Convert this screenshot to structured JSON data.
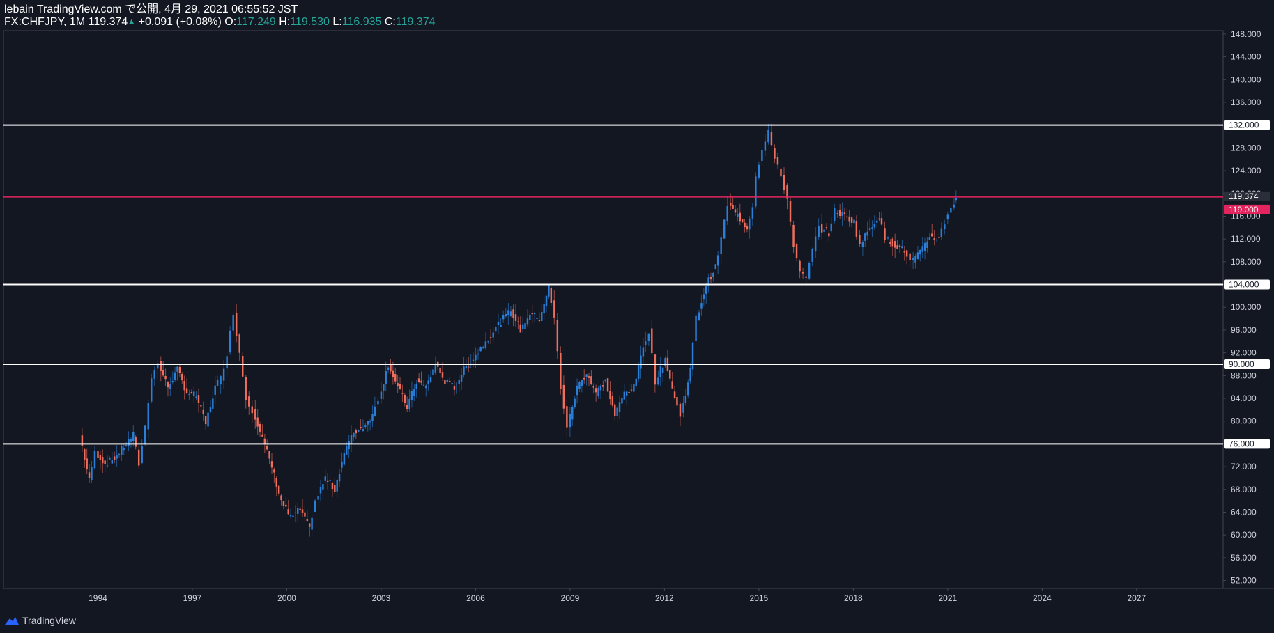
{
  "header": {
    "line1": "lebain TradingView.com で公開, 4月 29, 2021 06:55:52 JST",
    "symbol": "FX:CHFJPY, 1M",
    "last": "119.374",
    "arrow": "▲",
    "change": "+0.091 (+0.08%)",
    "o_label": "O:",
    "o_value": "117.249",
    "h_label": "H:",
    "h_value": "119.530",
    "l_label": "L:",
    "l_value": "116.935",
    "c_label": "C:",
    "c_value": "119.374"
  },
  "footer": {
    "brand": "TradingView"
  },
  "colors": {
    "background": "#131722",
    "up": "#2a7fd8",
    "down": "#f06e5c",
    "line": "#ffffff",
    "price_line": "#e2245f",
    "axis_text": "#d1d4dc"
  },
  "chart_data": {
    "type": "candlestick",
    "title": "FX:CHFJPY, 1M",
    "x_axis": {
      "ticks": [
        "1994",
        "1997",
        "2000",
        "2003",
        "2006",
        "2009",
        "2012",
        "2015",
        "2018",
        "2021",
        "2024",
        "2027"
      ],
      "range": [
        1991.0,
        2029.75
      ]
    },
    "y_axis": {
      "ticks": [
        "52.000",
        "56.000",
        "60.000",
        "64.000",
        "68.000",
        "72.000",
        "76.000",
        "80.000",
        "84.000",
        "88.000",
        "92.000",
        "96.000",
        "100.000",
        "104.000",
        "108.000",
        "112.000",
        "116.000",
        "120.000",
        "124.000",
        "128.000",
        "132.000",
        "136.000",
        "140.000",
        "144.000",
        "148.000"
      ],
      "range": [
        50.6,
        148.6
      ]
    },
    "horizontal_lines": [
      {
        "value": 132.0,
        "label": "132.000"
      },
      {
        "value": 104.0,
        "label": "104.000"
      },
      {
        "value": 90.0,
        "label": "90.000"
      },
      {
        "value": 76.0,
        "label": "76.000"
      }
    ],
    "price_lines": [
      {
        "value": 119.374,
        "label": "119.374",
        "kind": "last"
      },
      {
        "value": 119.0,
        "label": "119.000",
        "kind": "alert"
      }
    ],
    "series_points": [
      [
        1993.5,
        77.5
      ],
      [
        1993.8,
        69.5
      ],
      [
        1994.0,
        74.5
      ],
      [
        1994.3,
        72.5
      ],
      [
        1994.6,
        73.5
      ],
      [
        1994.9,
        75.5
      ],
      [
        1995.2,
        77.5
      ],
      [
        1995.4,
        72.5
      ],
      [
        1995.6,
        79.0
      ],
      [
        1995.8,
        88.0
      ],
      [
        1996.0,
        90.0
      ],
      [
        1996.3,
        86.0
      ],
      [
        1996.6,
        89.0
      ],
      [
        1996.9,
        85.0
      ],
      [
        1997.2,
        84.5
      ],
      [
        1997.5,
        79.5
      ],
      [
        1997.8,
        86.0
      ],
      [
        1998.0,
        87.5
      ],
      [
        1998.2,
        92.0
      ],
      [
        1998.4,
        99.0
      ],
      [
        1998.6,
        92.0
      ],
      [
        1998.8,
        84.0
      ],
      [
        1999.0,
        82.0
      ],
      [
        1999.3,
        77.0
      ],
      [
        1999.6,
        72.0
      ],
      [
        1999.9,
        66.0
      ],
      [
        2000.2,
        63.0
      ],
      [
        2000.5,
        64.5
      ],
      [
        2000.8,
        61.0
      ],
      [
        2001.0,
        66.0
      ],
      [
        2001.3,
        70.0
      ],
      [
        2001.6,
        68.0
      ],
      [
        2001.9,
        74.5
      ],
      [
        2002.2,
        78.0
      ],
      [
        2002.5,
        79.0
      ],
      [
        2002.8,
        81.0
      ],
      [
        2003.0,
        84.0
      ],
      [
        2003.3,
        90.0
      ],
      [
        2003.6,
        86.0
      ],
      [
        2003.9,
        82.5
      ],
      [
        2004.2,
        87.0
      ],
      [
        2004.5,
        86.0
      ],
      [
        2004.8,
        90.0
      ],
      [
        2005.1,
        87.0
      ],
      [
        2005.4,
        86.0
      ],
      [
        2005.7,
        89.0
      ],
      [
        2006.0,
        91.0
      ],
      [
        2006.4,
        94.0
      ],
      [
        2006.8,
        97.0
      ],
      [
        2007.2,
        99.5
      ],
      [
        2007.5,
        96.0
      ],
      [
        2007.8,
        99.0
      ],
      [
        2008.1,
        98.0
      ],
      [
        2008.4,
        103.5
      ],
      [
        2008.6,
        98.0
      ],
      [
        2008.8,
        86.0
      ],
      [
        2009.0,
        79.0
      ],
      [
        2009.3,
        86.0
      ],
      [
        2009.6,
        88.5
      ],
      [
        2009.9,
        85.0
      ],
      [
        2010.2,
        87.0
      ],
      [
        2010.5,
        81.0
      ],
      [
        2010.8,
        85.0
      ],
      [
        2011.1,
        86.0
      ],
      [
        2011.4,
        93.0
      ],
      [
        2011.6,
        96.0
      ],
      [
        2011.8,
        87.0
      ],
      [
        2012.1,
        91.0
      ],
      [
        2012.4,
        84.0
      ],
      [
        2012.6,
        81.0
      ],
      [
        2012.9,
        89.0
      ],
      [
        2013.1,
        98.0
      ],
      [
        2013.4,
        104.0
      ],
      [
        2013.7,
        107.0
      ],
      [
        2013.9,
        112.0
      ],
      [
        2014.1,
        118.0
      ],
      [
        2014.4,
        116.0
      ],
      [
        2014.7,
        114.0
      ],
      [
        2014.9,
        118.0
      ],
      [
        2015.0,
        123.0
      ],
      [
        2015.2,
        128.0
      ],
      [
        2015.4,
        131.0
      ],
      [
        2015.6,
        126.0
      ],
      [
        2015.8,
        123.0
      ],
      [
        2016.0,
        119.0
      ],
      [
        2016.2,
        111.0
      ],
      [
        2016.4,
        106.0
      ],
      [
        2016.6,
        105.0
      ],
      [
        2016.8,
        110.0
      ],
      [
        2017.0,
        114.0
      ],
      [
        2017.3,
        113.0
      ],
      [
        2017.5,
        117.0
      ],
      [
        2017.8,
        116.0
      ],
      [
        2018.1,
        115.0
      ],
      [
        2018.3,
        111.0
      ],
      [
        2018.6,
        114.0
      ],
      [
        2018.9,
        116.0
      ],
      [
        2019.1,
        112.0
      ],
      [
        2019.4,
        111.0
      ],
      [
        2019.7,
        110.0
      ],
      [
        2019.9,
        108.0
      ],
      [
        2020.2,
        109.5
      ],
      [
        2020.5,
        112.5
      ],
      [
        2020.8,
        112.0
      ],
      [
        2021.0,
        115.0
      ],
      [
        2021.2,
        117.5
      ],
      [
        2021.33,
        119.374
      ]
    ]
  }
}
